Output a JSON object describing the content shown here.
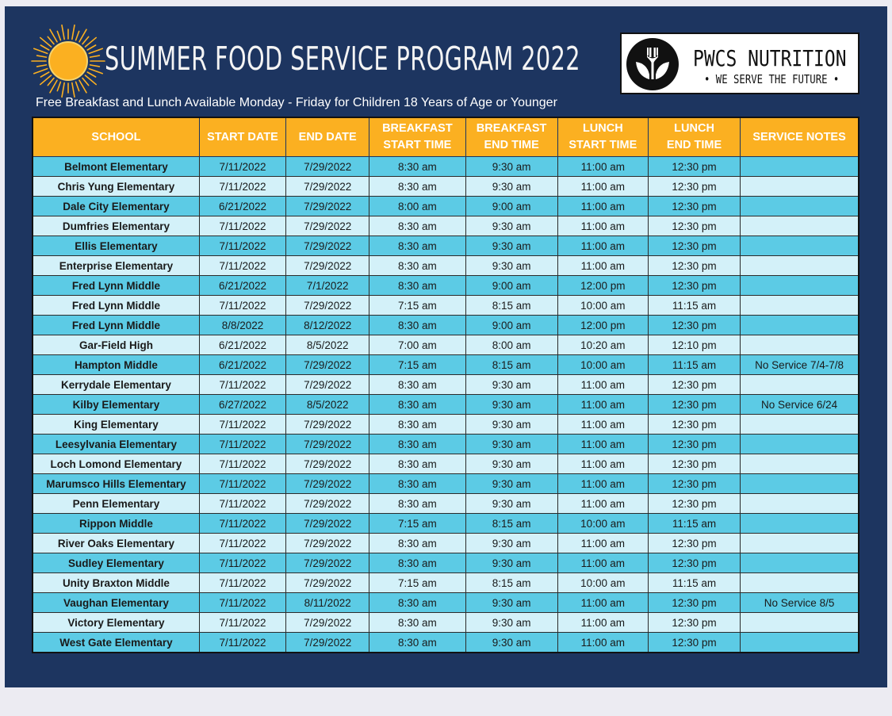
{
  "header": {
    "title": "SUMMER FOOD SERVICE PROGRAM 2022",
    "subtitle": "Free Breakfast and Lunch Available Monday - Friday for Children 18 Years of Age or Younger",
    "sun_icon": "sun-icon"
  },
  "logo": {
    "name": "PWCS NUTRITION",
    "tagline": "• WE SERVE THE FUTURE •",
    "icon": "fork-and-leaves-icon"
  },
  "colors": {
    "background": "#1d3560",
    "header_row": "#fbb021",
    "row_dark": "#5ccbe5",
    "row_light": "#d3f1f9",
    "sun": "#fbb021"
  },
  "table": {
    "columns": [
      "SCHOOL",
      "START DATE",
      "END DATE",
      "BREAKFAST\nSTART TIME",
      "BREAKFAST\nEND TIME",
      "LUNCH\nSTART TIME",
      "LUNCH\nEND TIME",
      "SERVICE NOTES"
    ],
    "rows": [
      [
        "Belmont Elementary",
        "7/11/2022",
        "7/29/2022",
        "8:30 am",
        "9:30 am",
        "11:00 am",
        "12:30 pm",
        ""
      ],
      [
        "Chris Yung Elementary",
        "7/11/2022",
        "7/29/2022",
        "8:30 am",
        "9:30 am",
        "11:00 am",
        "12:30 pm",
        ""
      ],
      [
        "Dale City Elementary",
        "6/21/2022",
        "7/29/2022",
        "8:00 am",
        "9:00 am",
        "11:00 am",
        "12:30 pm",
        ""
      ],
      [
        "Dumfries Elementary",
        "7/11/2022",
        "7/29/2022",
        "8:30 am",
        "9:30 am",
        "11:00 am",
        "12:30 pm",
        ""
      ],
      [
        "Ellis Elementary",
        "7/11/2022",
        "7/29/2022",
        "8:30 am",
        "9:30 am",
        "11:00 am",
        "12:30 pm",
        ""
      ],
      [
        "Enterprise Elementary",
        "7/11/2022",
        "7/29/2022",
        "8:30 am",
        "9:30 am",
        "11:00 am",
        "12:30 pm",
        ""
      ],
      [
        "Fred Lynn Middle",
        "6/21/2022",
        "7/1/2022",
        "8:30 am",
        "9:00 am",
        "12:00 pm",
        "12:30 pm",
        ""
      ],
      [
        "Fred Lynn Middle",
        "7/11/2022",
        "7/29/2022",
        "7:15 am",
        "8:15 am",
        "10:00 am",
        "11:15 am",
        ""
      ],
      [
        "Fred Lynn Middle",
        "8/8/2022",
        "8/12/2022",
        "8:30 am",
        "9:00 am",
        "12:00 pm",
        "12:30 pm",
        ""
      ],
      [
        "Gar-Field High",
        "6/21/2022",
        "8/5/2022",
        "7:00 am",
        "8:00 am",
        "10:20 am",
        "12:10 pm",
        ""
      ],
      [
        "Hampton Middle",
        "6/21/2022",
        "7/29/2022",
        "7:15 am",
        "8:15 am",
        "10:00 am",
        "11:15 am",
        "No Service 7/4-7/8"
      ],
      [
        "Kerrydale Elementary",
        "7/11/2022",
        "7/29/2022",
        "8:30 am",
        "9:30 am",
        "11:00 am",
        "12:30 pm",
        ""
      ],
      [
        "Kilby Elementary",
        "6/27/2022",
        "8/5/2022",
        "8:30 am",
        "9:30 am",
        "11:00 am",
        "12:30 pm",
        "No Service 6/24"
      ],
      [
        "King Elementary",
        "7/11/2022",
        "7/29/2022",
        "8:30 am",
        "9:30 am",
        "11:00 am",
        "12:30 pm",
        ""
      ],
      [
        "Leesylvania Elementary",
        "7/11/2022",
        "7/29/2022",
        "8:30 am",
        "9:30 am",
        "11:00 am",
        "12:30 pm",
        ""
      ],
      [
        "Loch Lomond Elementary",
        "7/11/2022",
        "7/29/2022",
        "8:30 am",
        "9:30 am",
        "11:00 am",
        "12:30 pm",
        ""
      ],
      [
        "Marumsco Hills Elementary",
        "7/11/2022",
        "7/29/2022",
        "8:30 am",
        "9:30 am",
        "11:00 am",
        "12:30 pm",
        ""
      ],
      [
        "Penn Elementary",
        "7/11/2022",
        "7/29/2022",
        "8:30 am",
        "9:30 am",
        "11:00 am",
        "12:30 pm",
        ""
      ],
      [
        "Rippon Middle",
        "7/11/2022",
        "7/29/2022",
        "7:15 am",
        "8:15 am",
        "10:00 am",
        "11:15 am",
        ""
      ],
      [
        "River Oaks Elementary",
        "7/11/2022",
        "7/29/2022",
        "8:30 am",
        "9:30 am",
        "11:00 am",
        "12:30 pm",
        ""
      ],
      [
        "Sudley Elementary",
        "7/11/2022",
        "7/29/2022",
        "8:30 am",
        "9:30 am",
        "11:00 am",
        "12:30 pm",
        ""
      ],
      [
        "Unity Braxton Middle",
        "7/11/2022",
        "7/29/2022",
        "7:15 am",
        "8:15 am",
        "10:00 am",
        "11:15 am",
        ""
      ],
      [
        "Vaughan Elementary",
        "7/11/2022",
        "8/11/2022",
        "8:30 am",
        "9:30 am",
        "11:00 am",
        "12:30 pm",
        "No Service 8/5"
      ],
      [
        "Victory Elementary",
        "7/11/2022",
        "7/29/2022",
        "8:30 am",
        "9:30 am",
        "11:00 am",
        "12:30 pm",
        ""
      ],
      [
        "West Gate Elementary",
        "7/11/2022",
        "7/29/2022",
        "8:30 am",
        "9:30 am",
        "11:00 am",
        "12:30 pm",
        ""
      ]
    ]
  }
}
